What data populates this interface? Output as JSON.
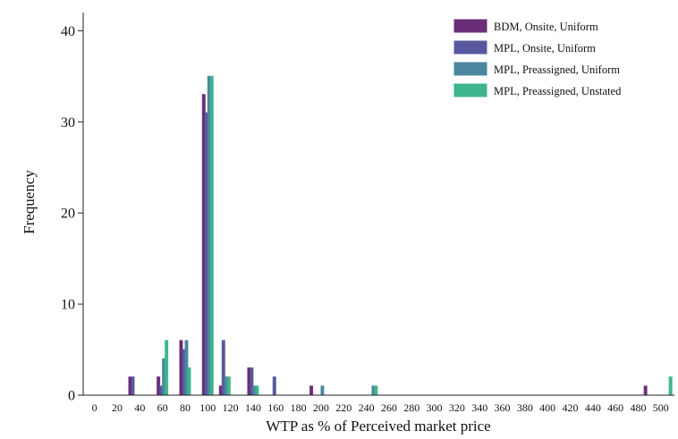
{
  "chart_data": {
    "type": "bar",
    "xlabel": "WTP as % of Perceived market price",
    "ylabel": "Frequency",
    "ylim": [
      0,
      42
    ],
    "xlim": [
      -10,
      512
    ],
    "bin_width": 10,
    "x_ticks": [
      0,
      20,
      40,
      60,
      80,
      100,
      120,
      140,
      160,
      180,
      200,
      220,
      240,
      260,
      280,
      300,
      320,
      340,
      360,
      380,
      400,
      420,
      440,
      460,
      480,
      500
    ],
    "y_ticks": [
      0,
      10,
      20,
      30,
      40
    ],
    "grid": false,
    "legend_position": "top-right",
    "series": [
      {
        "name": "BDM, Onsite, Uniform",
        "color": "#6a2d77",
        "points": [
          [
            35,
            2
          ],
          [
            60,
            2
          ],
          [
            80,
            6
          ],
          [
            100,
            33
          ],
          [
            115,
            1
          ],
          [
            140,
            3
          ],
          [
            195,
            1
          ],
          [
            490,
            1
          ]
        ]
      },
      {
        "name": "MPL, Onsite, Uniform",
        "color": "#58589e",
        "points": [
          [
            35,
            2
          ],
          [
            60,
            1
          ],
          [
            80,
            5
          ],
          [
            100,
            31
          ],
          [
            115,
            6
          ],
          [
            140,
            3
          ],
          [
            160,
            2
          ]
        ]
      },
      {
        "name": "MPL, Preassigned, Uniform",
        "color": "#4a879e",
        "points": [
          [
            60,
            4
          ],
          [
            80,
            6
          ],
          [
            100,
            35
          ],
          [
            115,
            2
          ],
          [
            140,
            1
          ],
          [
            200,
            1
          ],
          [
            245,
            1
          ]
        ]
      },
      {
        "name": "MPL, Preassigned, Unstated",
        "color": "#3fb58c",
        "points": [
          [
            60,
            6
          ],
          [
            80,
            3
          ],
          [
            100,
            35
          ],
          [
            115,
            2
          ],
          [
            140,
            1
          ],
          [
            245,
            1
          ],
          [
            505,
            2
          ]
        ]
      }
    ]
  }
}
